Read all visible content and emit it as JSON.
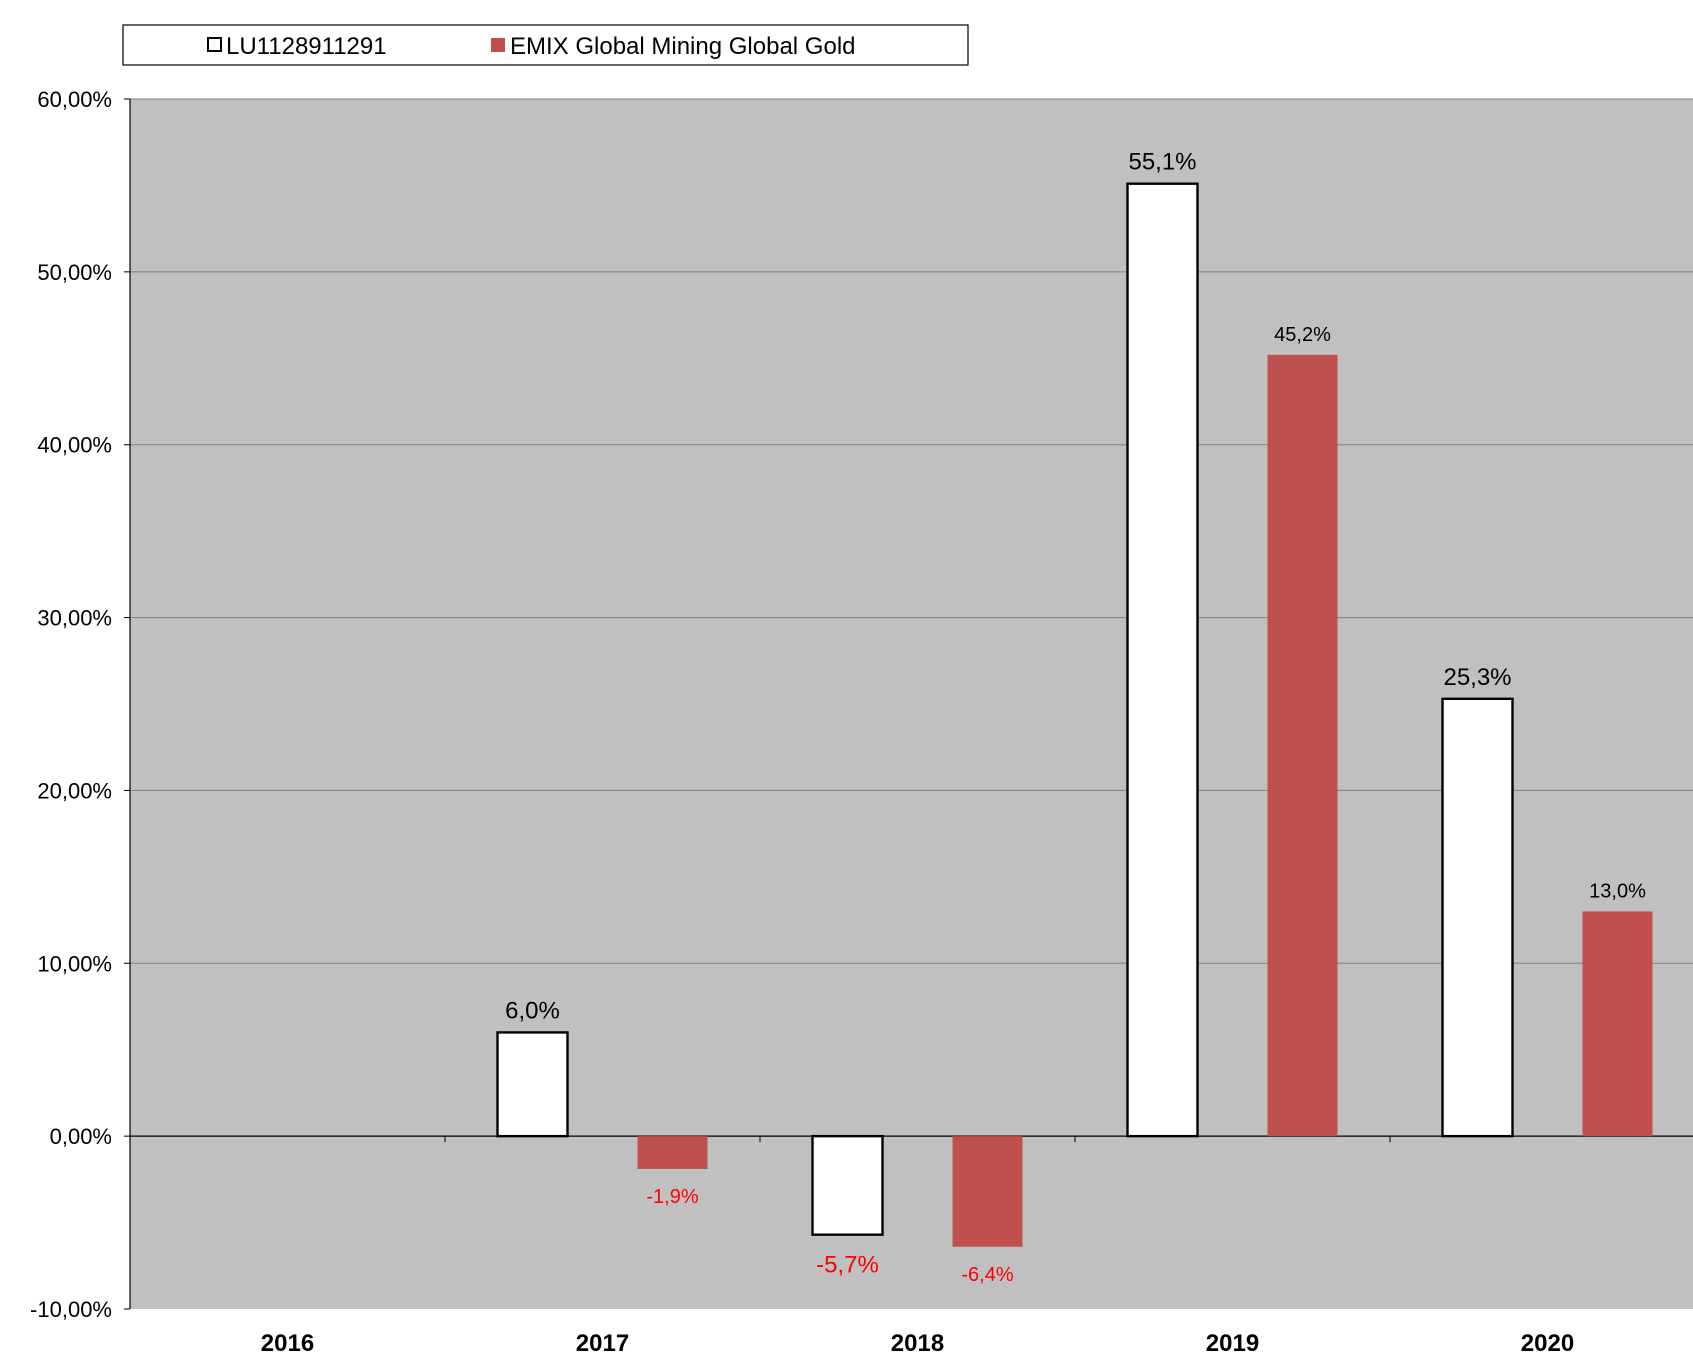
{
  "chart_data": {
    "type": "bar",
    "categories": [
      "2016",
      "2017",
      "2018",
      "2019",
      "2020"
    ],
    "series": [
      {
        "name": "LU1128911291",
        "values": [
          null,
          6.0,
          -5.7,
          55.1,
          25.3
        ],
        "labels": [
          "",
          "6,0%",
          "-5,7%",
          "55,1%",
          "25,3%"
        ]
      },
      {
        "name": "EMIX Global Mining Global Gold",
        "values": [
          null,
          -1.9,
          -6.4,
          45.2,
          13.0
        ],
        "labels": [
          "",
          "-1,9%",
          "-6,4%",
          "45,2%",
          "13,0%"
        ]
      }
    ],
    "y_ticks": [
      "-10,00%",
      "0,00%",
      "10,00%",
      "20,00%",
      "30,00%",
      "40,00%",
      "50,00%",
      "60,00%"
    ],
    "ylim": [
      -10,
      60
    ],
    "grid": true,
    "legend_position": "top-left",
    "colors": {
      "series_1_fill": "#ffffff",
      "series_1_stroke": "#000000",
      "series_2_fill": "#c0504d",
      "plot_background": "#c0c0c0",
      "gridline": "#808080",
      "negative_label": "#ff0000"
    }
  }
}
